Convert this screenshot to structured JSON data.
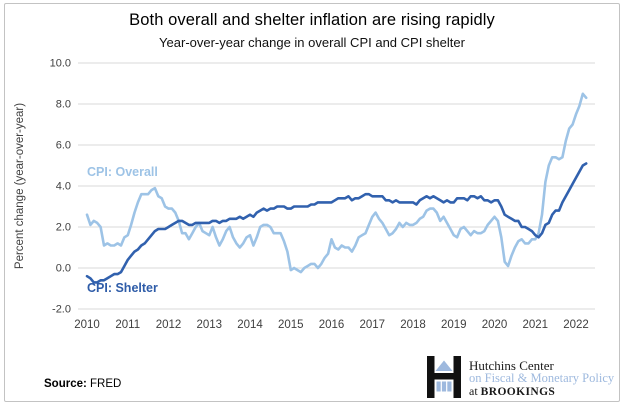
{
  "header": {
    "title": "Both overall and shelter inflation are rising rapidly",
    "subtitle": "Year-over-year change in overall CPI and CPI shelter"
  },
  "footer": {
    "source_label": "Source:",
    "source_value": " FRED"
  },
  "logo": {
    "icon": "hutchins-building-icon",
    "line1": "Hutchins Center",
    "line2": "on Fiscal & Monetary Policy",
    "line3_prefix": "at ",
    "line3": "BROOKINGS"
  },
  "colors": {
    "overall_line": "#9DC3E6",
    "shelter_line": "#3161AE",
    "overall_label": "#9DC3E6",
    "shelter_label": "#2E5CA8",
    "gridline": "#D9D9D9",
    "axis_text": "#3F3F3F",
    "logo_blue": "#9EB9DE",
    "logo_black": "#1A1A1A"
  },
  "chart_data": {
    "type": "line",
    "title": "Both overall and shelter inflation are rising rapidly",
    "subtitle": "Year-over-year change in overall CPI and CPI shelter",
    "xlabel": "",
    "ylabel": "Percent change (year-over-year)",
    "ylim": [
      -2.0,
      10.0
    ],
    "grid": "horizontal-only",
    "legend_position": "inline-labels",
    "y_tick_labels": [
      "10.0",
      "8.0",
      "6.0",
      "4.0",
      "2.0",
      "0.0",
      "-2.0"
    ],
    "y_tick_values": [
      10,
      8,
      6,
      4,
      2,
      0,
      -2
    ],
    "x_tick_labels": [
      "2010",
      "2011",
      "2012",
      "2013",
      "2014",
      "2015",
      "2016",
      "2017",
      "2018",
      "2019",
      "2020",
      "2021",
      "2022"
    ],
    "x_start": "2010-01",
    "x_end": "2022-04",
    "x_frequency": "monthly",
    "series": [
      {
        "name": "CPI: Overall",
        "values": [
          2.6,
          2.1,
          2.3,
          2.2,
          2.0,
          1.1,
          1.2,
          1.1,
          1.1,
          1.2,
          1.1,
          1.5,
          1.6,
          2.1,
          2.7,
          3.2,
          3.6,
          3.6,
          3.6,
          3.8,
          3.9,
          3.5,
          3.4,
          3.0,
          2.9,
          2.9,
          2.7,
          2.3,
          1.7,
          1.7,
          1.4,
          1.7,
          2.0,
          2.2,
          1.8,
          1.7,
          1.6,
          2.0,
          1.5,
          1.1,
          1.4,
          1.8,
          2.0,
          1.5,
          1.2,
          1.0,
          1.2,
          1.5,
          1.6,
          1.1,
          1.5,
          2.0,
          2.1,
          2.1,
          2.0,
          1.7,
          1.7,
          1.7,
          1.3,
          0.8,
          -0.1,
          0.0,
          -0.1,
          -0.2,
          0.0,
          0.1,
          0.2,
          0.2,
          0.0,
          0.2,
          0.5,
          0.7,
          1.4,
          1.0,
          0.9,
          1.1,
          1.0,
          1.0,
          0.8,
          1.1,
          1.5,
          1.6,
          1.7,
          2.1,
          2.5,
          2.7,
          2.4,
          2.2,
          1.9,
          1.6,
          1.7,
          1.9,
          2.2,
          2.0,
          2.2,
          2.1,
          2.1,
          2.2,
          2.4,
          2.5,
          2.8,
          2.9,
          2.9,
          2.7,
          2.3,
          2.5,
          2.2,
          1.9,
          1.6,
          1.5,
          1.9,
          2.0,
          1.8,
          1.6,
          1.8,
          1.7,
          1.7,
          1.8,
          2.1,
          2.3,
          2.5,
          2.3,
          1.5,
          0.3,
          0.1,
          0.6,
          1.0,
          1.3,
          1.4,
          1.2,
          1.2,
          1.4,
          1.4,
          1.7,
          2.6,
          4.2,
          5.0,
          5.4,
          5.4,
          5.3,
          5.4,
          6.2,
          6.8,
          7.0,
          7.5,
          7.9,
          8.5,
          8.3
        ]
      },
      {
        "name": "CPI: Shelter",
        "values": [
          -0.4,
          -0.5,
          -0.7,
          -0.7,
          -0.6,
          -0.6,
          -0.5,
          -0.4,
          -0.3,
          -0.3,
          -0.2,
          0.1,
          0.4,
          0.6,
          0.8,
          0.9,
          1.1,
          1.2,
          1.4,
          1.6,
          1.8,
          1.9,
          1.9,
          1.9,
          2.0,
          2.1,
          2.2,
          2.3,
          2.3,
          2.2,
          2.1,
          2.1,
          2.2,
          2.2,
          2.2,
          2.2,
          2.2,
          2.3,
          2.3,
          2.2,
          2.3,
          2.3,
          2.4,
          2.4,
          2.4,
          2.5,
          2.4,
          2.5,
          2.6,
          2.5,
          2.7,
          2.8,
          2.9,
          2.8,
          2.9,
          2.9,
          3.0,
          3.0,
          3.0,
          2.9,
          2.9,
          3.0,
          3.0,
          3.0,
          3.0,
          3.0,
          3.1,
          3.1,
          3.2,
          3.2,
          3.2,
          3.2,
          3.2,
          3.3,
          3.4,
          3.4,
          3.4,
          3.5,
          3.3,
          3.4,
          3.4,
          3.5,
          3.6,
          3.6,
          3.5,
          3.5,
          3.5,
          3.5,
          3.3,
          3.3,
          3.2,
          3.3,
          3.2,
          3.2,
          3.2,
          3.2,
          3.2,
          3.1,
          3.3,
          3.4,
          3.5,
          3.4,
          3.5,
          3.4,
          3.3,
          3.2,
          3.3,
          3.2,
          3.2,
          3.4,
          3.4,
          3.4,
          3.3,
          3.5,
          3.5,
          3.4,
          3.5,
          3.3,
          3.3,
          3.2,
          3.3,
          3.3,
          3.0,
          2.6,
          2.5,
          2.4,
          2.3,
          2.3,
          2.0,
          2.0,
          1.9,
          1.8,
          1.6,
          1.5,
          1.7,
          2.1,
          2.2,
          2.6,
          2.8,
          2.8,
          3.2,
          3.5,
          3.8,
          4.1,
          4.4,
          4.7,
          5.0,
          5.1
        ]
      }
    ]
  }
}
